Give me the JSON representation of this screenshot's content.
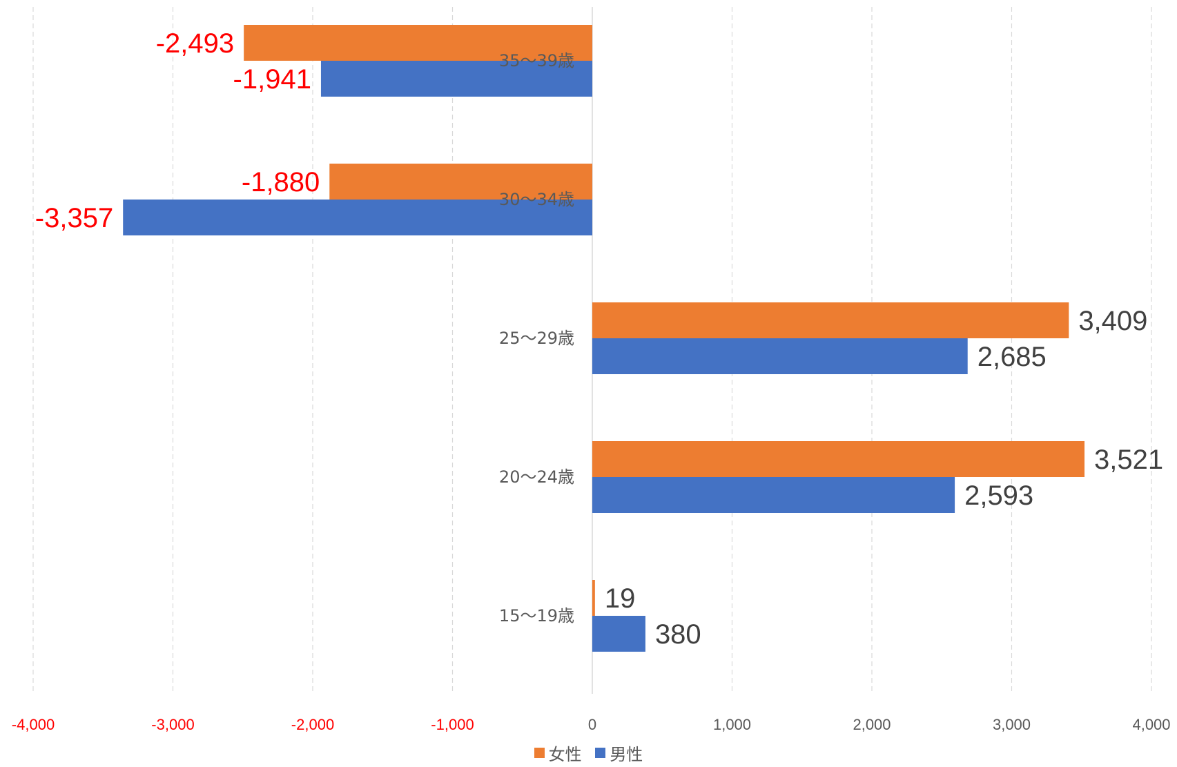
{
  "chart_data": {
    "type": "bar",
    "orientation": "horizontal",
    "categories": [
      "35〜39歳",
      "30〜34歳",
      "25〜29歳",
      "20〜24歳",
      "15〜19歳"
    ],
    "series": [
      {
        "name": "女性",
        "color": "#ED7D31",
        "values": [
          -2493,
          -1880,
          3409,
          3521,
          19
        ],
        "labels": [
          "-2,493",
          "-1,880",
          "3,409",
          "3,521",
          "19"
        ]
      },
      {
        "name": "男性",
        "color": "#4472C4",
        "values": [
          -1941,
          -3357,
          2685,
          2593,
          380
        ],
        "labels": [
          "-1,941",
          "-3,357",
          "2,685",
          "2,593",
          "380"
        ]
      }
    ],
    "xlim": [
      -4000,
      4000
    ],
    "x_ticks": [
      -4000,
      -3000,
      -2000,
      -1000,
      0,
      1000,
      2000,
      3000,
      4000
    ],
    "x_tick_labels": [
      "-4,000",
      "-3,000",
      "-2,000",
      "-1,000",
      "0",
      "1,000",
      "2,000",
      "3,000",
      "4,000"
    ],
    "negative_color": "#FF0000",
    "positive_label_color": "#404040",
    "category_label_color": "#595959",
    "grid": "vertical dashed",
    "legend_position": "bottom"
  },
  "legend": {
    "female_label": "女性",
    "male_label": "男性",
    "female_color": "#ED7D31",
    "male_color": "#4472C4"
  }
}
